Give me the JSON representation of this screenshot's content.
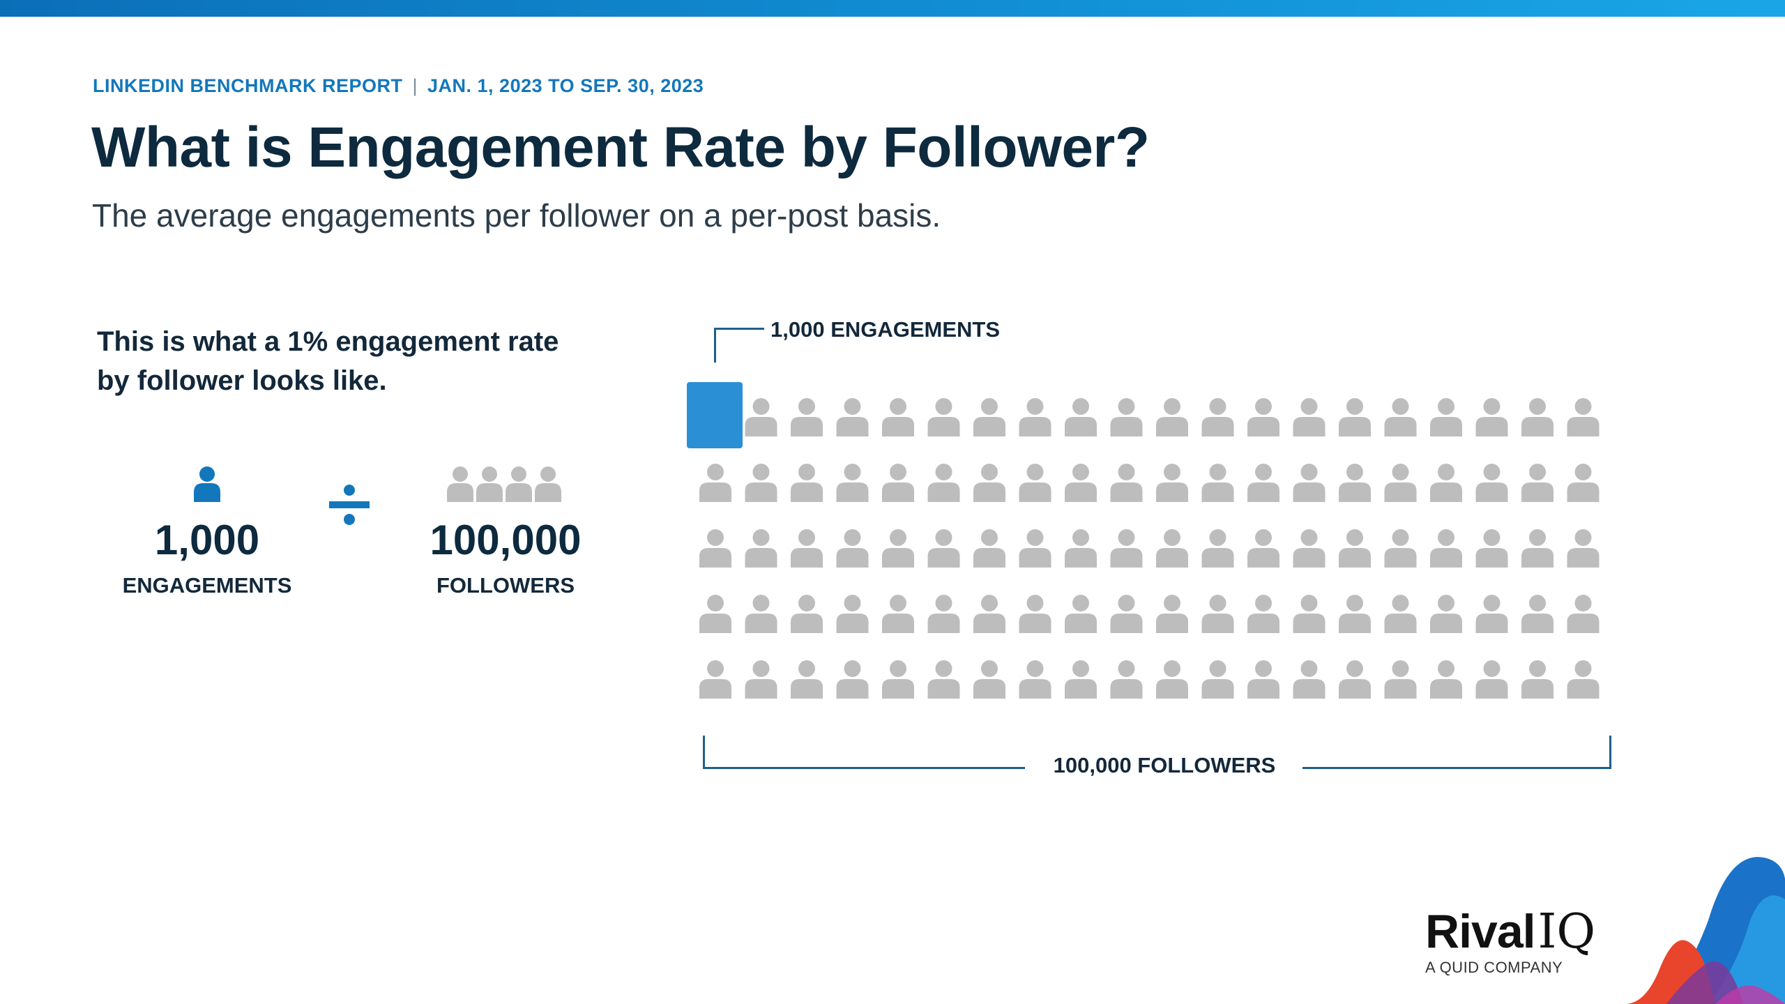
{
  "header": {
    "report_name": "LINKEDIN BENCHMARK REPORT",
    "separator": "|",
    "date_range": "JAN. 1, 2023 TO SEP. 30, 2023",
    "title": "What is Engagement Rate by Follower?",
    "subtitle": "The average engagements per follower on a per-post basis."
  },
  "explainer": {
    "text": "This is what a 1% engagement rate by follower looks like."
  },
  "equation": {
    "engagements_value": "1,000",
    "engagements_label": "ENGAGEMENTS",
    "operator_icon": "divide-icon",
    "followers_value": "100,000",
    "followers_label": "FOLLOWERS"
  },
  "visualization": {
    "engagements_label": "1,000 ENGAGEMENTS",
    "followers_label": "100,000 FOLLOWERS",
    "rows": 5,
    "columns": 20,
    "highlighted_count": 1
  },
  "brand": {
    "name_bold": "Rival",
    "name_light": "IQ",
    "tagline": "A QUID COMPANY"
  },
  "colors": {
    "accent_blue": "#1377bb",
    "highlight_blue": "#2b8fd6",
    "title_navy": "#0d2a3e",
    "person_gray": "#bdbdbd",
    "bracket": "#1e5f8f"
  }
}
